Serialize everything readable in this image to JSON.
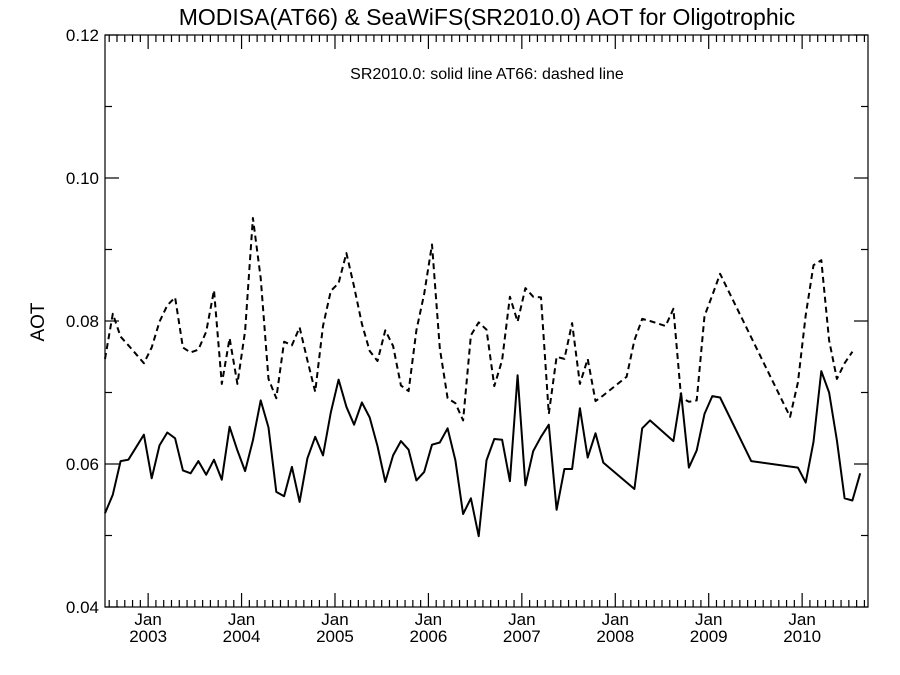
{
  "chart_data": {
    "type": "line",
    "title": "MODISA(AT66) & SeaWiFS(SR2010.0)  AOT for Oligotrophic",
    "annotation": "SR2010.0: solid line   AT66: dashed line",
    "xlabel": "",
    "ylabel": "AOT",
    "ylim": [
      0.04,
      0.12
    ],
    "xlim": [
      "2002-07-15",
      "2010-09-15"
    ],
    "yticks": [
      "0.04",
      "0.06",
      "0.08",
      "0.10",
      "0.12"
    ],
    "xticks": [
      {
        "date": "2003-01-01",
        "month": "Jan",
        "year": "2003"
      },
      {
        "date": "2004-01-01",
        "month": "Jan",
        "year": "2004"
      },
      {
        "date": "2005-01-01",
        "month": "Jan",
        "year": "2005"
      },
      {
        "date": "2006-01-01",
        "month": "Jan",
        "year": "2006"
      },
      {
        "date": "2007-01-01",
        "month": "Jan",
        "year": "2007"
      },
      {
        "date": "2008-01-01",
        "month": "Jan",
        "year": "2008"
      },
      {
        "date": "2009-01-01",
        "month": "Jan",
        "year": "2009"
      },
      {
        "date": "2010-01-01",
        "month": "Jan",
        "year": "2010"
      }
    ],
    "minor_ticks": "monthly",
    "grid": false,
    "series": [
      {
        "name": "SR2010.0",
        "style": "solid",
        "color": "#000000",
        "points": [
          [
            "2002-07-15",
            0.0531
          ],
          [
            "2002-08-15",
            0.0557
          ],
          [
            "2002-09-15",
            0.0604
          ],
          [
            "2002-10-15",
            0.0606
          ],
          [
            "2002-12-15",
            0.0641
          ],
          [
            "2003-01-15",
            0.058
          ],
          [
            "2003-02-15",
            0.0626
          ],
          [
            "2003-03-15",
            0.0644
          ],
          [
            "2003-04-15",
            0.0636
          ],
          [
            "2003-05-15",
            0.0591
          ],
          [
            "2003-06-15",
            0.0587
          ],
          [
            "2003-07-15",
            0.0604
          ],
          [
            "2003-08-15",
            0.0585
          ],
          [
            "2003-09-15",
            0.0606
          ],
          [
            "2003-10-15",
            0.0578
          ],
          [
            "2003-11-15",
            0.0652
          ],
          [
            "2003-12-15",
            0.0619
          ],
          [
            "2004-01-15",
            0.059
          ],
          [
            "2004-02-15",
            0.0633
          ],
          [
            "2004-03-15",
            0.0689
          ],
          [
            "2004-04-15",
            0.0651
          ],
          [
            "2004-05-15",
            0.0561
          ],
          [
            "2004-06-15",
            0.0555
          ],
          [
            "2004-07-15",
            0.0596
          ],
          [
            "2004-08-15",
            0.0547
          ],
          [
            "2004-09-15",
            0.0608
          ],
          [
            "2004-10-15",
            0.0638
          ],
          [
            "2004-11-15",
            0.0612
          ],
          [
            "2004-12-15",
            0.0672
          ],
          [
            "2005-01-15",
            0.0718
          ],
          [
            "2005-02-15",
            0.068
          ],
          [
            "2005-03-15",
            0.0655
          ],
          [
            "2005-04-15",
            0.0686
          ],
          [
            "2005-05-15",
            0.0665
          ],
          [
            "2005-06-15",
            0.0625
          ],
          [
            "2005-07-15",
            0.0575
          ],
          [
            "2005-08-15",
            0.0612
          ],
          [
            "2005-09-15",
            0.0632
          ],
          [
            "2005-10-15",
            0.062
          ],
          [
            "2005-11-15",
            0.0577
          ],
          [
            "2005-12-15",
            0.0589
          ],
          [
            "2006-01-15",
            0.0627
          ],
          [
            "2006-02-15",
            0.063
          ],
          [
            "2006-03-15",
            0.065
          ],
          [
            "2006-04-15",
            0.0605
          ],
          [
            "2006-05-15",
            0.053
          ],
          [
            "2006-06-15",
            0.0552
          ],
          [
            "2006-07-15",
            0.0499
          ],
          [
            "2006-08-15",
            0.0605
          ],
          [
            "2006-09-15",
            0.0635
          ],
          [
            "2006-10-15",
            0.0634
          ],
          [
            "2006-11-15",
            0.0576
          ],
          [
            "2006-12-15",
            0.0724
          ],
          [
            "2007-01-15",
            0.057
          ],
          [
            "2007-02-15",
            0.0618
          ],
          [
            "2007-03-15",
            0.0638
          ],
          [
            "2007-04-15",
            0.0655
          ],
          [
            "2007-05-15",
            0.0536
          ],
          [
            "2007-06-15",
            0.0593
          ],
          [
            "2007-07-15",
            0.0593
          ],
          [
            "2007-08-15",
            0.0678
          ],
          [
            "2007-09-15",
            0.0609
          ],
          [
            "2007-10-15",
            0.0643
          ],
          [
            "2007-11-15",
            0.0602
          ],
          [
            "2008-03-15",
            0.0565
          ],
          [
            "2008-04-15",
            0.065
          ],
          [
            "2008-05-15",
            0.0661
          ],
          [
            "2008-08-15",
            0.0632
          ],
          [
            "2008-09-15",
            0.0699
          ],
          [
            "2008-10-15",
            0.0595
          ],
          [
            "2008-11-15",
            0.0619
          ],
          [
            "2008-12-15",
            0.067
          ],
          [
            "2009-01-15",
            0.0695
          ],
          [
            "2009-02-15",
            0.0693
          ],
          [
            "2009-06-15",
            0.0604
          ],
          [
            "2009-12-15",
            0.0595
          ],
          [
            "2010-01-15",
            0.0574
          ],
          [
            "2010-02-15",
            0.0631
          ],
          [
            "2010-03-15",
            0.073
          ],
          [
            "2010-04-15",
            0.07
          ],
          [
            "2010-05-15",
            0.0633
          ],
          [
            "2010-06-15",
            0.0552
          ],
          [
            "2010-07-15",
            0.0549
          ],
          [
            "2010-08-15",
            0.0587
          ]
        ]
      },
      {
        "name": "AT66",
        "style": "dashed",
        "color": "#000000",
        "points": [
          [
            "2002-07-15",
            0.0747
          ],
          [
            "2002-08-15",
            0.081
          ],
          [
            "2002-09-15",
            0.0778
          ],
          [
            "2002-10-15",
            0.0766
          ],
          [
            "2002-12-15",
            0.0741
          ],
          [
            "2003-01-15",
            0.0763
          ],
          [
            "2003-02-15",
            0.0799
          ],
          [
            "2003-03-15",
            0.0822
          ],
          [
            "2003-04-15",
            0.0833
          ],
          [
            "2003-05-15",
            0.0763
          ],
          [
            "2003-06-15",
            0.0756
          ],
          [
            "2003-07-15",
            0.076
          ],
          [
            "2003-08-15",
            0.0785
          ],
          [
            "2003-09-15",
            0.0843
          ],
          [
            "2003-10-15",
            0.0712
          ],
          [
            "2003-11-15",
            0.0776
          ],
          [
            "2003-12-15",
            0.0712
          ],
          [
            "2004-01-15",
            0.0786
          ],
          [
            "2004-02-15",
            0.0944
          ],
          [
            "2004-03-15",
            0.086
          ],
          [
            "2004-04-15",
            0.0719
          ],
          [
            "2004-05-15",
            0.0692
          ],
          [
            "2004-06-15",
            0.0771
          ],
          [
            "2004-07-15",
            0.0766
          ],
          [
            "2004-08-15",
            0.0791
          ],
          [
            "2004-09-15",
            0.0745
          ],
          [
            "2004-10-15",
            0.0701
          ],
          [
            "2004-11-15",
            0.0793
          ],
          [
            "2004-12-15",
            0.0842
          ],
          [
            "2005-01-15",
            0.0853
          ],
          [
            "2005-02-15",
            0.0895
          ],
          [
            "2005-03-15",
            0.0848
          ],
          [
            "2005-04-15",
            0.0796
          ],
          [
            "2005-05-15",
            0.0758
          ],
          [
            "2005-06-15",
            0.0744
          ],
          [
            "2005-07-15",
            0.0787
          ],
          [
            "2005-08-15",
            0.0765
          ],
          [
            "2005-09-15",
            0.071
          ],
          [
            "2005-10-15",
            0.0702
          ],
          [
            "2005-11-15",
            0.0787
          ],
          [
            "2005-12-15",
            0.0838
          ],
          [
            "2006-01-15",
            0.0907
          ],
          [
            "2006-02-15",
            0.0762
          ],
          [
            "2006-03-15",
            0.0692
          ],
          [
            "2006-04-15",
            0.0685
          ],
          [
            "2006-05-15",
            0.0661
          ],
          [
            "2006-06-15",
            0.078
          ],
          [
            "2006-07-15",
            0.0798
          ],
          [
            "2006-08-15",
            0.0788
          ],
          [
            "2006-09-15",
            0.0709
          ],
          [
            "2006-10-15",
            0.0745
          ],
          [
            "2006-11-15",
            0.0834
          ],
          [
            "2006-12-15",
            0.0799
          ],
          [
            "2007-01-15",
            0.0846
          ],
          [
            "2007-02-15",
            0.0834
          ],
          [
            "2007-03-15",
            0.0833
          ],
          [
            "2007-04-15",
            0.067
          ],
          [
            "2007-05-15",
            0.075
          ],
          [
            "2007-06-15",
            0.0747
          ],
          [
            "2007-07-15",
            0.0797
          ],
          [
            "2007-08-15",
            0.0712
          ],
          [
            "2007-09-15",
            0.0747
          ],
          [
            "2007-10-15",
            0.0688
          ],
          [
            "2007-11-15",
            0.0696
          ],
          [
            "2008-02-15",
            0.0722
          ],
          [
            "2008-03-15",
            0.0773
          ],
          [
            "2008-04-15",
            0.0803
          ],
          [
            "2008-05-15",
            0.08
          ],
          [
            "2008-07-15",
            0.0793
          ],
          [
            "2008-08-15",
            0.0817
          ],
          [
            "2008-09-15",
            0.0693
          ],
          [
            "2008-10-15",
            0.0687
          ],
          [
            "2008-11-15",
            0.0689
          ],
          [
            "2008-12-15",
            0.0807
          ],
          [
            "2009-01-15",
            0.0836
          ],
          [
            "2009-02-15",
            0.0866
          ],
          [
            "2009-11-15",
            0.0666
          ],
          [
            "2009-12-15",
            0.0714
          ],
          [
            "2010-01-15",
            0.0808
          ],
          [
            "2010-02-15",
            0.0878
          ],
          [
            "2010-03-15",
            0.0885
          ],
          [
            "2010-04-15",
            0.0773
          ],
          [
            "2010-05-15",
            0.0719
          ],
          [
            "2010-06-15",
            0.0741
          ],
          [
            "2010-07-15",
            0.0757
          ]
        ]
      }
    ]
  }
}
